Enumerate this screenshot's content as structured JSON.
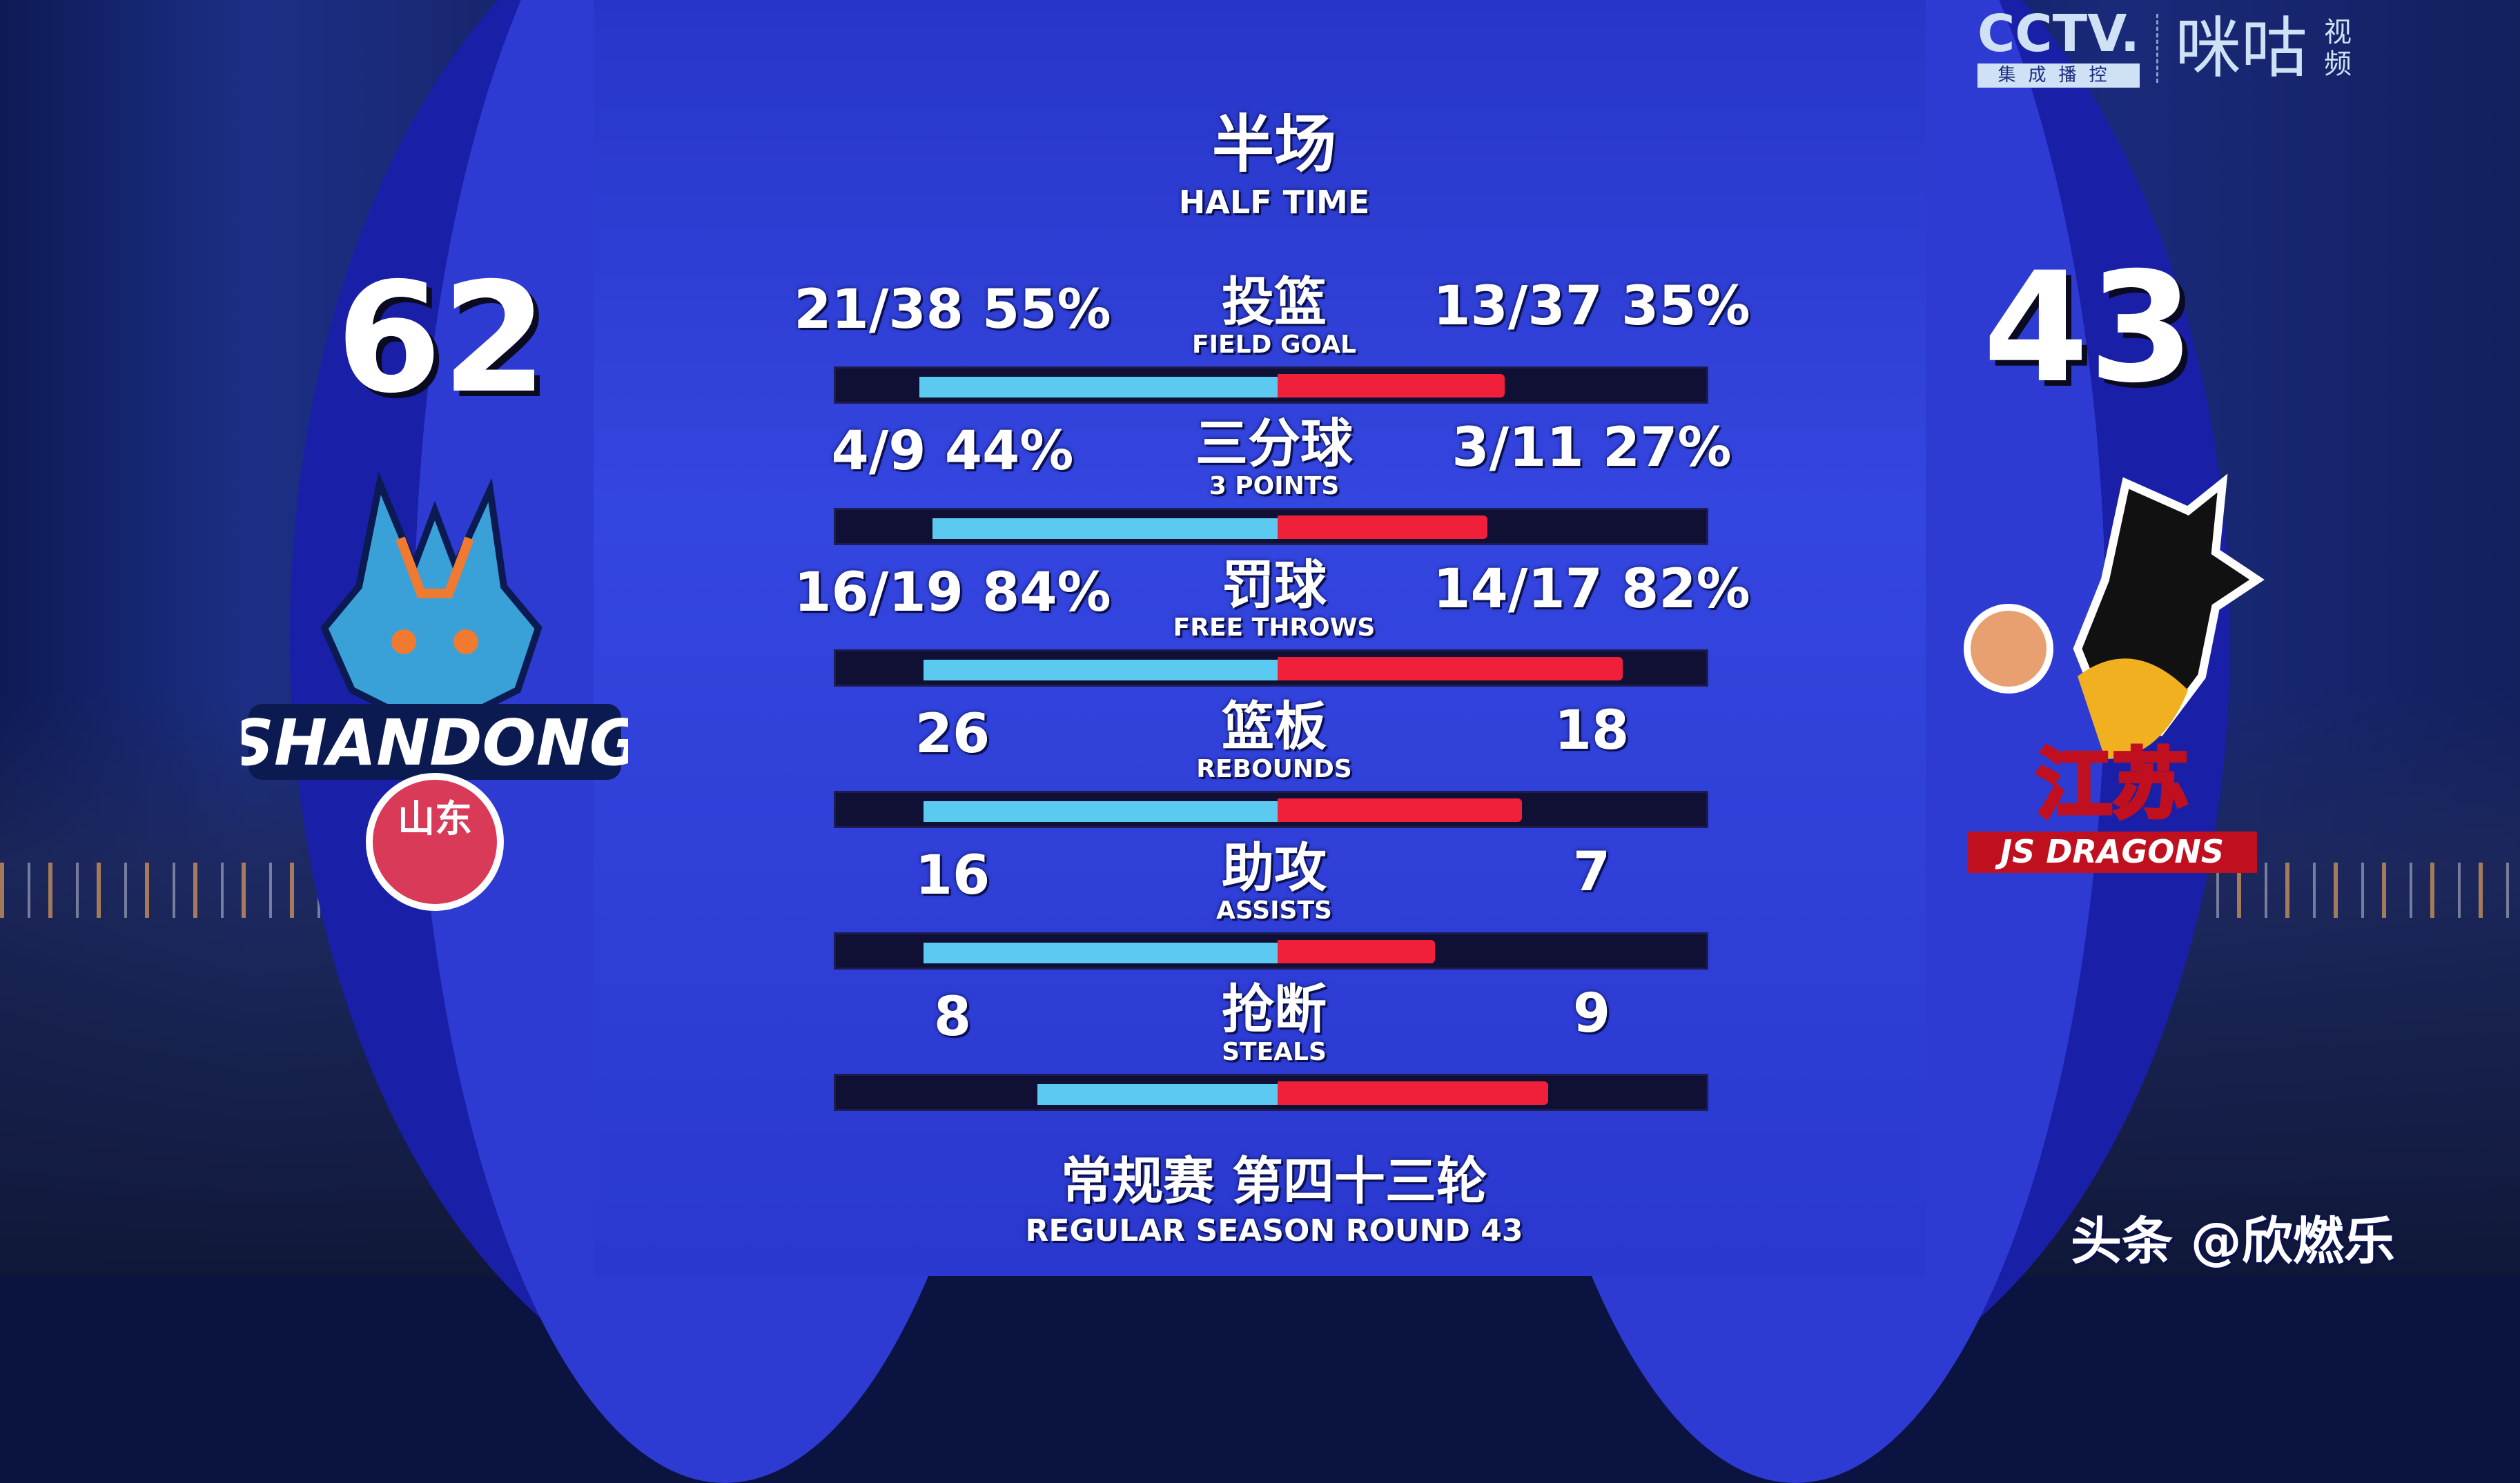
{
  "broadcaster": {
    "cctv": "CCTV.",
    "cctv_sub": "集成播控",
    "migu": "咪咕",
    "migu_sub": "视频"
  },
  "header": {
    "title_cn": "半场",
    "title_en": "HALF TIME"
  },
  "home": {
    "score": "62",
    "logo_text": "SHANDONG",
    "logo_text_cn": "山东",
    "color": "#5ccaf0"
  },
  "away": {
    "score": "43",
    "logo_text": "JS DRAGONS",
    "logo_text_cn": "江苏",
    "color": "#f0203a"
  },
  "stats": [
    {
      "cn": "投篮",
      "en": "FIELD GOAL",
      "home": "21/38  55%",
      "away": "13/37  35%",
      "home_fill": 0.82,
      "away_fill": 0.52
    },
    {
      "cn": "三分球",
      "en": "3 POINTS",
      "home": "4/9  44%",
      "away": "3/11  27%",
      "home_fill": 0.79,
      "away_fill": 0.48
    },
    {
      "cn": "罚球",
      "en": "FREE THROWS",
      "home": "16/19  84%",
      "away": "14/17  82%",
      "home_fill": 0.81,
      "away_fill": 0.79
    },
    {
      "cn": "篮板",
      "en": "REBOUNDS",
      "home": "26",
      "away": "18",
      "home_fill": 0.81,
      "away_fill": 0.56
    },
    {
      "cn": "助攻",
      "en": "ASSISTS",
      "home": "16",
      "away": "7",
      "home_fill": 0.81,
      "away_fill": 0.36
    },
    {
      "cn": "抢断",
      "en": "STEALS",
      "home": "8",
      "away": "9",
      "home_fill": 0.55,
      "away_fill": 0.62
    }
  ],
  "footer": {
    "cn": "常规赛 第四十三轮",
    "en": "REGULAR SEASON ROUND 43"
  },
  "watermark": "头条 @欣燃乐"
}
